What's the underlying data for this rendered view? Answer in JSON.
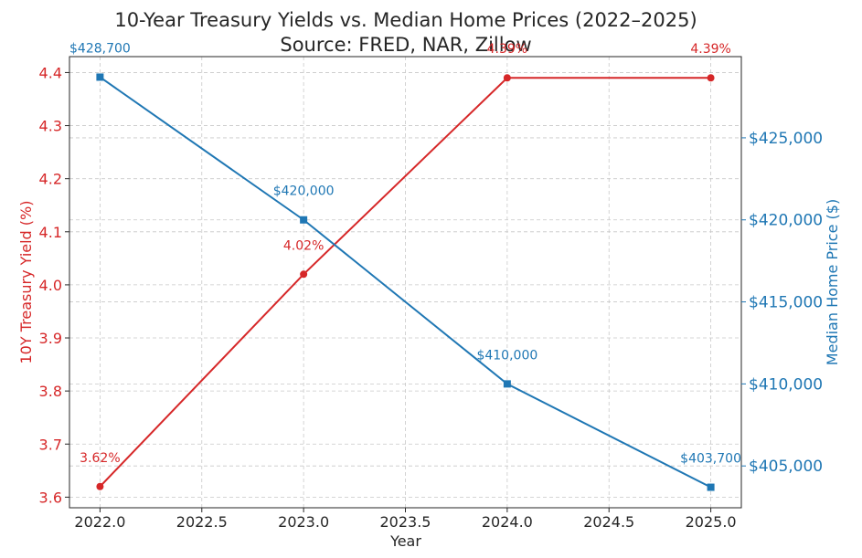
{
  "chart_data": {
    "type": "line",
    "title": "10-Year Treasury Yields vs. Median Home Prices (2022–2025)",
    "subtitle": "Source: FRED, NAR, Zillow",
    "xlabel": "Year",
    "x": [
      2022,
      2023,
      2024,
      2025
    ],
    "xlim": [
      2021.85,
      2025.15
    ],
    "xticks": [
      2022.0,
      2022.5,
      2023.0,
      2023.5,
      2024.0,
      2024.5,
      2025.0
    ],
    "xtick_labels": [
      "2022.0",
      "2022.5",
      "2023.0",
      "2023.5",
      "2024.0",
      "2024.5",
      "2025.0"
    ],
    "grid": true,
    "series": [
      {
        "ylabel": "10Y Treasury Yield (%)",
        "axis": "left",
        "color": "#d62728",
        "marker": "circle",
        "values": [
          3.62,
          4.02,
          4.39,
          4.39
        ],
        "data_labels": [
          "3.62%",
          "4.02%",
          "4.39%",
          "4.39%"
        ],
        "ylim": [
          3.58,
          4.43
        ],
        "yticks": [
          3.6,
          3.7,
          3.8,
          3.9,
          4.0,
          4.1,
          4.2,
          4.3,
          4.4
        ],
        "ytick_labels": [
          "3.6",
          "3.7",
          "3.8",
          "3.9",
          "4.0",
          "4.1",
          "4.2",
          "4.3",
          "4.4"
        ]
      },
      {
        "ylabel": "Median Home Price ($)",
        "axis": "right",
        "color": "#1f77b4",
        "marker": "square",
        "values": [
          428700,
          420000,
          410000,
          403700
        ],
        "data_labels": [
          "$428,700",
          "$420,000",
          "$410,000",
          "$403,700"
        ],
        "ylim": [
          402450,
          429950
        ],
        "yticks": [
          405000,
          410000,
          415000,
          420000,
          425000
        ],
        "ytick_labels": [
          "$405,000",
          "$410,000",
          "$415,000",
          "$420,000",
          "$425,000"
        ]
      }
    ]
  }
}
